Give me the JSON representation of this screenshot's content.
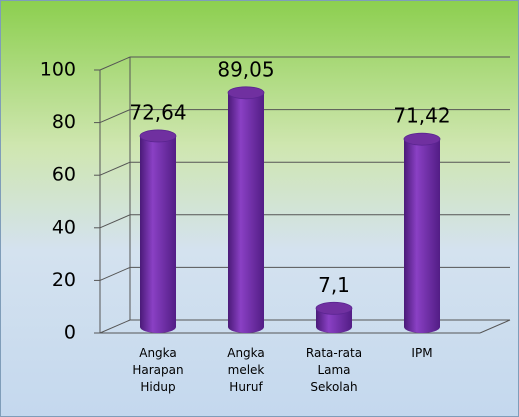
{
  "chart_data": {
    "type": "bar",
    "categories": [
      "Angka Harapan Hidup",
      "Angka melek Huruf",
      "Rata-rata Lama Sekolah",
      "IPM"
    ],
    "values": [
      72.64,
      89.05,
      7.1,
      71.42
    ],
    "value_labels": [
      "72,64",
      "89,05",
      "7,1",
      "71,42"
    ],
    "color": "#7030a0",
    "ylim": [
      0,
      100
    ],
    "yticks": [
      0,
      20,
      40,
      60,
      80,
      100
    ],
    "grid": true
  }
}
